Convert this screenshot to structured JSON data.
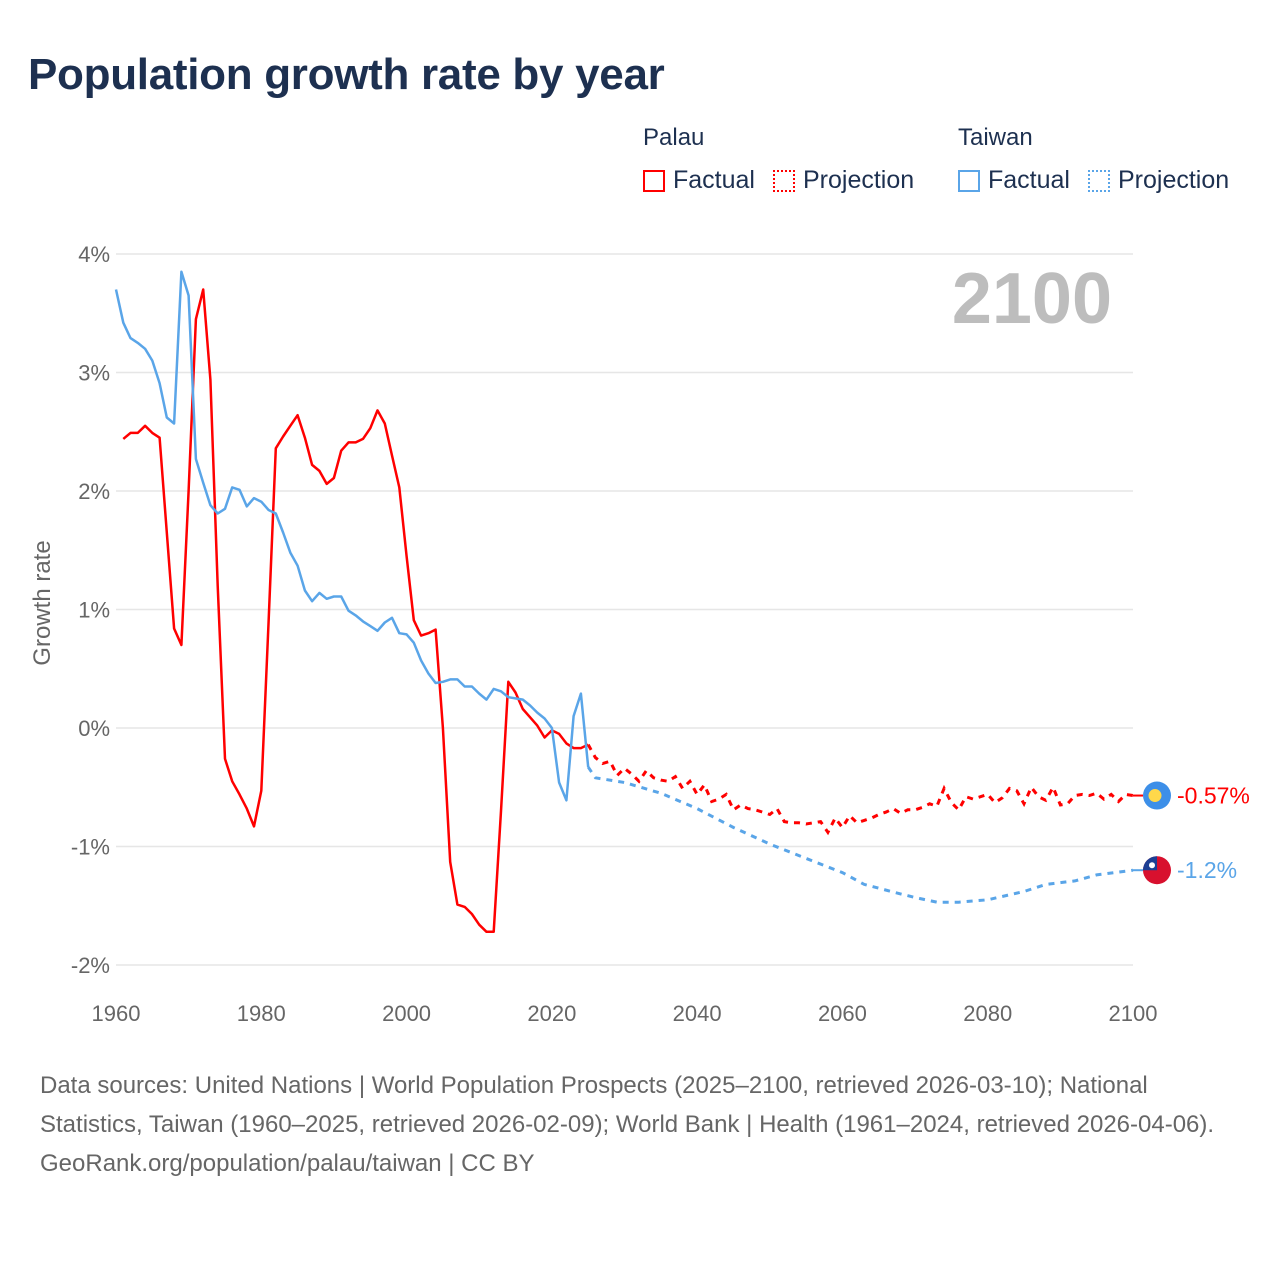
{
  "title": "Population growth rate by year",
  "legend": {
    "groups": [
      {
        "name": "Palau",
        "color": "#ff0000",
        "factual": "Factual",
        "projection": "Projection"
      },
      {
        "name": "Taiwan",
        "color": "#5aa5e8",
        "factual": "Factual",
        "projection": "Projection"
      }
    ]
  },
  "year_display": "2100",
  "chart_data": {
    "type": "line",
    "title": "Population growth rate by year",
    "xlabel": "",
    "ylabel": "Growth rate",
    "xlim": [
      1960,
      2100
    ],
    "ylim": [
      -2.25,
      4.2
    ],
    "xticks": [
      1960,
      1980,
      2000,
      2020,
      2040,
      2060,
      2080,
      2100
    ],
    "yticks": [
      {
        "v": 4,
        "label": "4%"
      },
      {
        "v": 3,
        "label": "3%"
      },
      {
        "v": 2,
        "label": "2%"
      },
      {
        "v": 1,
        "label": "1%"
      },
      {
        "v": 0,
        "label": "0%"
      },
      {
        "v": -1,
        "label": "-1%"
      },
      {
        "v": -2,
        "label": "-2%"
      }
    ],
    "grid": true,
    "series": [
      {
        "name": "Palau",
        "color": "#ff0000",
        "end_label": "-0.57%",
        "end_value": -0.57,
        "factual": {
          "start": 1961,
          "values": [
            2.44,
            2.49,
            2.49,
            2.55,
            2.49,
            2.45,
            1.65,
            0.84,
            0.7,
            2.0,
            3.45,
            3.7,
            2.94,
            1.2,
            -0.26,
            -0.45,
            -0.56,
            -0.68,
            -0.83,
            -0.53,
            0.9,
            2.36,
            2.46,
            2.55,
            2.64,
            2.45,
            2.22,
            2.17,
            2.06,
            2.11,
            2.34,
            2.41,
            2.41,
            2.44,
            2.53,
            2.68,
            2.57,
            2.3,
            2.03,
            1.45,
            0.91,
            0.78,
            0.8,
            0.83,
            0.0,
            -1.13,
            -1.49,
            -1.51,
            -1.57,
            -1.66,
            -1.72,
            -1.72,
            -0.7,
            0.39,
            0.3,
            0.16,
            0.09,
            0.02,
            -0.08,
            -0.02,
            -0.05,
            -0.13,
            -0.17,
            -0.17,
            -0.14
          ]
        },
        "projection": {
          "start": 2025,
          "values": [
            -0.14,
            -0.25,
            -0.3,
            -0.28,
            -0.4,
            -0.34,
            -0.39,
            -0.45,
            -0.36,
            -0.42,
            -0.44,
            -0.45,
            -0.41,
            -0.51,
            -0.45,
            -0.56,
            -0.48,
            -0.62,
            -0.6,
            -0.56,
            -0.69,
            -0.65,
            -0.68,
            -0.69,
            -0.71,
            -0.73,
            -0.68,
            -0.79,
            -0.8,
            -0.8,
            -0.81,
            -0.8,
            -0.79,
            -0.88,
            -0.76,
            -0.84,
            -0.74,
            -0.8,
            -0.78,
            -0.76,
            -0.73,
            -0.71,
            -0.68,
            -0.72,
            -0.69,
            -0.69,
            -0.67,
            -0.64,
            -0.66,
            -0.51,
            -0.63,
            -0.69,
            -0.58,
            -0.6,
            -0.58,
            -0.56,
            -0.63,
            -0.59,
            -0.51,
            -0.53,
            -0.64,
            -0.5,
            -0.58,
            -0.61,
            -0.5,
            -0.65,
            -0.64,
            -0.57,
            -0.56,
            -0.57,
            -0.55,
            -0.6,
            -0.56,
            -0.62,
            -0.56,
            -0.57
          ]
        }
      },
      {
        "name": "Taiwan",
        "color": "#5aa5e8",
        "end_label": "-1.2%",
        "end_value": -1.2,
        "factual": {
          "start": 1960,
          "values": [
            3.7,
            3.42,
            3.29,
            3.25,
            3.2,
            3.1,
            2.91,
            2.62,
            2.57,
            3.85,
            3.65,
            2.27,
            2.07,
            1.88,
            1.81,
            1.85,
            2.03,
            2.01,
            1.87,
            1.94,
            1.91,
            1.84,
            1.81,
            1.65,
            1.48,
            1.37,
            1.16,
            1.07,
            1.14,
            1.09,
            1.11,
            1.11,
            0.99,
            0.95,
            0.9,
            0.86,
            0.82,
            0.89,
            0.93,
            0.8,
            0.79,
            0.72,
            0.57,
            0.46,
            0.38,
            0.39,
            0.41,
            0.41,
            0.35,
            0.35,
            0.29,
            0.24,
            0.33,
            0.31,
            0.26,
            0.25,
            0.24,
            0.19,
            0.13,
            0.08,
            0.0,
            -0.46,
            -0.61,
            0.1,
            0.29,
            -0.33
          ]
        },
        "projection": {
          "points": [
            [
              2025,
              -0.33
            ],
            [
              2026,
              -0.42
            ],
            [
              2030,
              -0.46
            ],
            [
              2035,
              -0.55
            ],
            [
              2040,
              -0.68
            ],
            [
              2045,
              -0.84
            ],
            [
              2050,
              -0.98
            ],
            [
              2055,
              -1.1
            ],
            [
              2060,
              -1.22
            ],
            [
              2063,
              -1.32
            ],
            [
              2068,
              -1.4
            ],
            [
              2070,
              -1.43
            ],
            [
              2073,
              -1.47
            ],
            [
              2076,
              -1.47
            ],
            [
              2080,
              -1.45
            ],
            [
              2085,
              -1.38
            ],
            [
              2088,
              -1.32
            ],
            [
              2092,
              -1.29
            ],
            [
              2095,
              -1.24
            ],
            [
              2100,
              -1.2
            ]
          ]
        }
      }
    ]
  },
  "footer": {
    "sources": "Data sources: United Nations | World Population Prospects (2025–2100, retrieved 2026-03-10); National Statistics, Taiwan (1960–2025, retrieved 2026-02-09); World Bank | Health (1961–2024, retrieved 2026-04-06).",
    "credit": "GeoRank.org/population/palau/taiwan | CC BY"
  }
}
